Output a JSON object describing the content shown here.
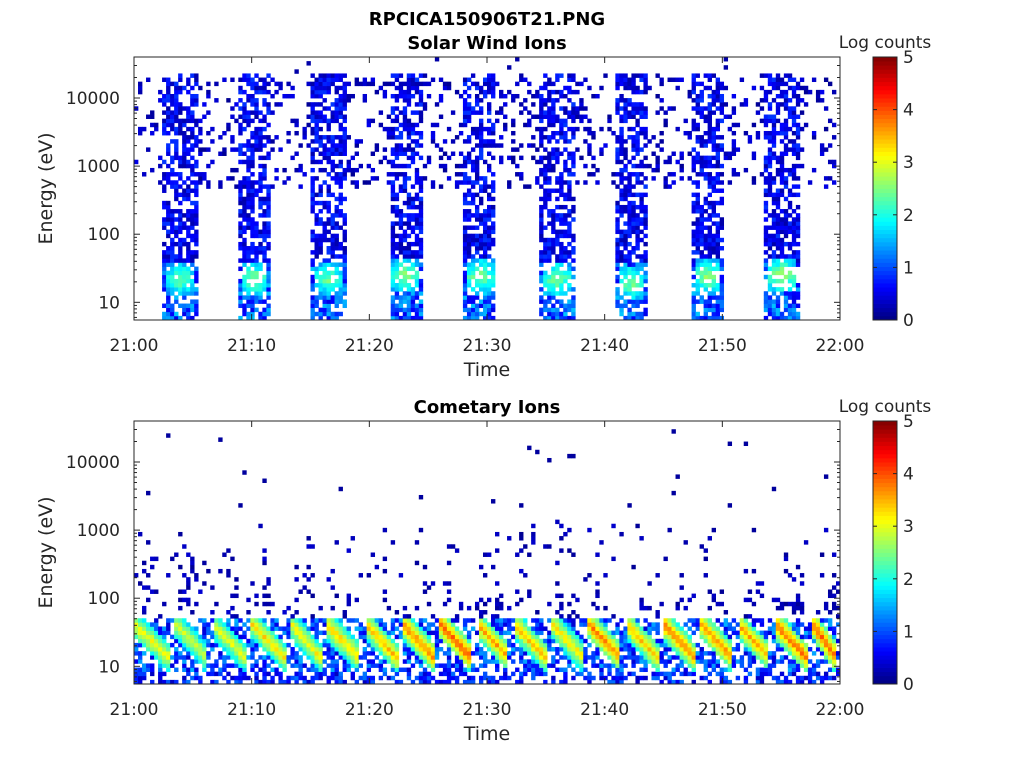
{
  "figure": {
    "filename": "RPCICA150906T21.PNG"
  },
  "chart_data": [
    {
      "type": "heatmap",
      "title": "Solar Wind Ions",
      "xlabel": "Time",
      "ylabel": "Energy (eV)",
      "x_range": [
        "21:00",
        "22:00"
      ],
      "x_ticks": [
        "21:00",
        "21:10",
        "21:20",
        "21:30",
        "21:40",
        "21:50",
        "22:00"
      ],
      "y_scale": "log",
      "y_range": [
        5.5,
        40000
      ],
      "y_ticks": [
        "10",
        "100",
        "1000",
        "10000"
      ],
      "colorbar": {
        "label": "Log counts",
        "range": [
          0,
          5
        ],
        "ticks": [
          "0",
          "1",
          "2",
          "3",
          "4",
          "5"
        ],
        "colormap": "jet"
      },
      "bursts": [
        {
          "start": "21:02:30",
          "end": "21:05:20",
          "peak_energy_eV": 22,
          "peak_log_counts": 2.3
        },
        {
          "start": "21:08:50",
          "end": "21:11:40",
          "peak_energy_eV": 22,
          "peak_log_counts": 2.4
        },
        {
          "start": "21:15:10",
          "end": "21:18:00",
          "peak_energy_eV": 22,
          "peak_log_counts": 2.3
        },
        {
          "start": "21:21:40",
          "end": "21:24:30",
          "peak_energy_eV": 25,
          "peak_log_counts": 2.5
        },
        {
          "start": "21:28:00",
          "end": "21:30:50",
          "peak_energy_eV": 24,
          "peak_log_counts": 2.4
        },
        {
          "start": "21:34:30",
          "end": "21:37:20",
          "peak_energy_eV": 22,
          "peak_log_counts": 2.4
        },
        {
          "start": "21:40:50",
          "end": "21:43:40",
          "peak_energy_eV": 20,
          "peak_log_counts": 2.4
        },
        {
          "start": "21:47:20",
          "end": "21:50:10",
          "peak_energy_eV": 24,
          "peak_log_counts": 2.5
        },
        {
          "start": "21:53:40",
          "end": "21:56:30",
          "peak_energy_eV": 25,
          "peak_log_counts": 2.6
        }
      ],
      "background_log_counts": 0.3,
      "background_energy_range_eV": [
        500,
        20000
      ]
    },
    {
      "type": "heatmap",
      "title": "Cometary Ions",
      "xlabel": "Time",
      "ylabel": "Energy (eV)",
      "x_range": [
        "21:00",
        "22:00"
      ],
      "x_ticks": [
        "21:00",
        "21:10",
        "21:20",
        "21:30",
        "21:40",
        "21:50",
        "22:00"
      ],
      "y_scale": "log",
      "y_range": [
        5.5,
        40000
      ],
      "y_ticks": [
        "10",
        "100",
        "1000",
        "10000"
      ],
      "colorbar": {
        "label": "Log counts",
        "range": [
          0,
          5
        ],
        "ticks": [
          "0",
          "1",
          "2",
          "3",
          "4",
          "5"
        ],
        "colormap": "jet"
      },
      "arcs": [
        {
          "start": "21:00:00",
          "peak_log_counts": 3.0
        },
        {
          "start": "21:03:30",
          "peak_log_counts": 2.8
        },
        {
          "start": "21:06:40",
          "peak_log_counts": 2.9
        },
        {
          "start": "21:10:00",
          "peak_log_counts": 3.1
        },
        {
          "start": "21:13:20",
          "peak_log_counts": 3.0
        },
        {
          "start": "21:16:20",
          "peak_log_counts": 3.2
        },
        {
          "start": "21:19:40",
          "peak_log_counts": 3.3
        },
        {
          "start": "21:22:50",
          "peak_log_counts": 3.6
        },
        {
          "start": "21:26:00",
          "peak_log_counts": 3.8
        },
        {
          "start": "21:29:10",
          "peak_log_counts": 3.4
        },
        {
          "start": "21:32:20",
          "peak_log_counts": 3.3
        },
        {
          "start": "21:35:30",
          "peak_log_counts": 3.1
        },
        {
          "start": "21:38:40",
          "peak_log_counts": 3.6
        },
        {
          "start": "21:41:50",
          "peak_log_counts": 3.3
        },
        {
          "start": "21:45:00",
          "peak_log_counts": 3.6
        },
        {
          "start": "21:48:10",
          "peak_log_counts": 3.5
        },
        {
          "start": "21:51:20",
          "peak_log_counts": 3.4
        },
        {
          "start": "21:54:30",
          "peak_log_counts": 3.7
        },
        {
          "start": "21:57:40",
          "peak_log_counts": 3.8
        }
      ],
      "arc_energy_range_eV": [
        8,
        50
      ],
      "background_log_counts": 0.3,
      "background_energy_range_eV": [
        50,
        1500
      ]
    }
  ]
}
